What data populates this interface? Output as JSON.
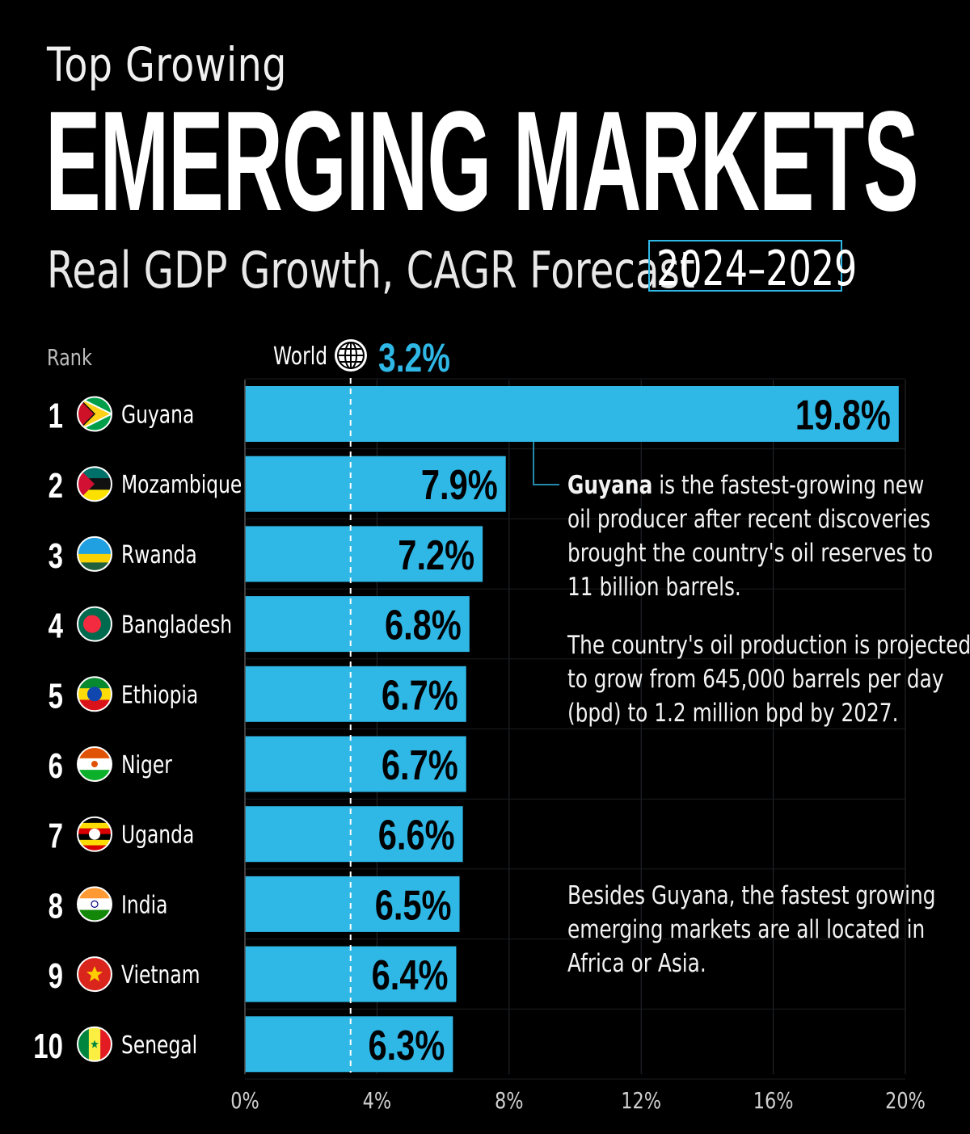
{
  "header": {
    "title_line1": "Top Growing",
    "title_line2": "EMERGING MARKETS",
    "subtitle": "Real GDP Growth, CAGR Forecast",
    "years": "2024–2029"
  },
  "labels": {
    "rank": "Rank",
    "world": "World",
    "world_value": "3.2%"
  },
  "notes": {
    "note1_bold": "Guyana",
    "note1_line1_rest": " is the fastest-growing new",
    "note1_line2": "oil producer after recent discoveries",
    "note1_line3": "brought the country's oil reserves to",
    "note1_line4": "11 billion barrels.",
    "note2_line1": "The country's oil production is projected",
    "note2_line2": "to grow from 645,000 barrels per day",
    "note2_line3": "(bpd) to 1.2 million bpd by 2027.",
    "note3_line1": "Besides Guyana, the fastest growing",
    "note3_line2": "emerging markets are all located in",
    "note3_line3": "Africa or Asia."
  },
  "colors": {
    "bar": "#2fb7e6",
    "background": "#000000",
    "accent": "#2fb7e6"
  },
  "chart_data": {
    "type": "bar",
    "orientation": "horizontal",
    "categories": [
      "Guyana",
      "Mozambique",
      "Rwanda",
      "Bangladesh",
      "Ethiopia",
      "Niger",
      "Uganda",
      "India",
      "Vietnam",
      "Senegal"
    ],
    "ranks": [
      "1",
      "2",
      "3",
      "4",
      "5",
      "6",
      "7",
      "8",
      "9",
      "10"
    ],
    "values": [
      19.8,
      7.9,
      7.2,
      6.8,
      6.7,
      6.7,
      6.6,
      6.5,
      6.4,
      6.3
    ],
    "value_labels": [
      "19.8%",
      "7.9%",
      "7.2%",
      "6.8%",
      "6.7%",
      "6.7%",
      "6.6%",
      "6.5%",
      "6.4%",
      "6.3%"
    ],
    "reference_line": 3.2,
    "xlim": [
      0,
      20
    ],
    "xticks": [
      0,
      4,
      8,
      12,
      16,
      20
    ],
    "xtick_labels": [
      "0%",
      "4%",
      "8%",
      "12%",
      "16%",
      "20%"
    ],
    "grid": true
  }
}
